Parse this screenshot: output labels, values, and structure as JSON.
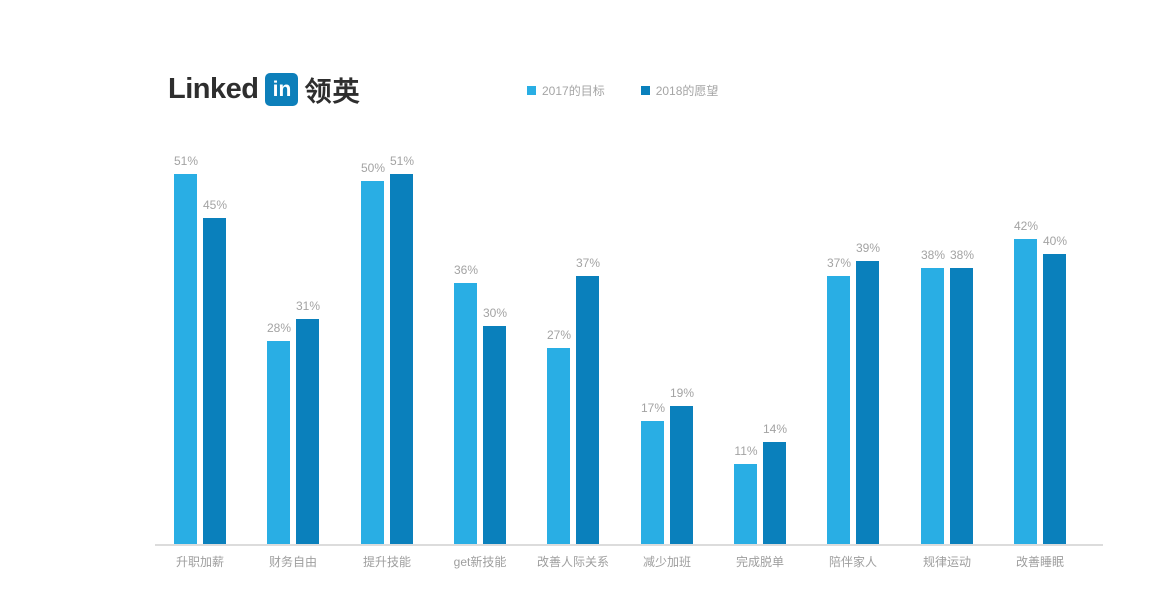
{
  "logo": {
    "linked_text": "Linked",
    "in_badge": "in",
    "cn_text": "领英",
    "badge_color": "#0d7fba"
  },
  "legend": [
    {
      "label": "2017的目标",
      "color": "#29aee4"
    },
    {
      "label": "2018的愿望",
      "color": "#0a80bc"
    }
  ],
  "chart_data": {
    "type": "bar",
    "title": "",
    "categories": [
      "升职加薪",
      "财务自由",
      "提升技能",
      "get新技能",
      "改善人际关系",
      "减少加班",
      "完成脱单",
      "陪伴家人",
      "规律运动",
      "改善睡眠"
    ],
    "series": [
      {
        "name": "2017的目标",
        "color": "#29aee4",
        "values": [
          51,
          28,
          50,
          36,
          27,
          17,
          11,
          37,
          38,
          42
        ]
      },
      {
        "name": "2018的愿望",
        "color": "#0a80bc",
        "values": [
          45,
          31,
          51,
          30,
          37,
          19,
          14,
          39,
          38,
          40
        ]
      }
    ],
    "value_suffix": "%",
    "value_labels": true,
    "xlabel": "",
    "ylabel": "",
    "ylim": [
      0,
      55
    ],
    "grid": false,
    "legend_position": "top",
    "axis_line_color": "#dcdcdc",
    "label_color": "#a3a3a3"
  }
}
